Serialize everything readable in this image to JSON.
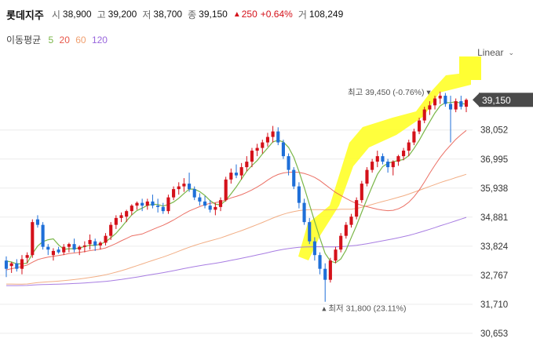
{
  "header": {
    "name": "롯데지주",
    "open_label": "시",
    "open": "38,900",
    "high_label": "고",
    "high": "39,200",
    "low_label": "저",
    "low": "38,700",
    "close_label": "종",
    "close": "39,150",
    "change": "250",
    "change_pct": "+0.64%",
    "volume_label": "거",
    "volume": "108,249"
  },
  "ma_legend": {
    "title": "이동평균",
    "periods": [
      {
        "label": "5",
        "color": "#7ab648"
      },
      {
        "label": "20",
        "color": "#e8574a"
      },
      {
        "label": "60",
        "color": "#f0a070"
      },
      {
        "label": "120",
        "color": "#9966dd"
      }
    ]
  },
  "scale_selector": "Linear",
  "chart_data": {
    "type": "candlestick",
    "y_ticks": [
      "38,052",
      "36,995",
      "35,938",
      "34,881",
      "33,824",
      "32,767",
      "31,710",
      "30,653"
    ],
    "y_tick_values": [
      38052,
      36995,
      35938,
      34881,
      33824,
      32767,
      31710,
      30653
    ],
    "ylim": [
      30450,
      40900
    ],
    "current_price_label": "39,150",
    "current_price": 39150,
    "max_annotation": "최고 39,450 (-0.76%)",
    "max_value": 39450,
    "min_annotation": "최저 31,800 (23.11%)",
    "min_value": 31800,
    "up_color": "#d4111a",
    "down_color": "#1f6fd8",
    "candles": [
      [
        33300,
        33450,
        32700,
        33000
      ],
      [
        33100,
        33250,
        32850,
        33200
      ],
      [
        33200,
        33350,
        32900,
        33000
      ],
      [
        33000,
        33500,
        32800,
        33350
      ],
      [
        33400,
        33600,
        33200,
        33500
      ],
      [
        33500,
        34800,
        33400,
        34700
      ],
      [
        34800,
        34950,
        34500,
        34600
      ],
      [
        34600,
        34700,
        33700,
        33800
      ],
      [
        33800,
        33900,
        33500,
        33700
      ],
      [
        33500,
        33750,
        33300,
        33650
      ],
      [
        33700,
        33800,
        33550,
        33600
      ],
      [
        33600,
        33900,
        33500,
        33800
      ],
      [
        33800,
        33950,
        33600,
        33900
      ],
      [
        33900,
        34100,
        33600,
        33700
      ],
      [
        33700,
        33850,
        33500,
        33800
      ],
      [
        33800,
        34000,
        33600,
        33850
      ],
      [
        33900,
        34250,
        33700,
        34050
      ],
      [
        34000,
        34100,
        33650,
        33850
      ],
      [
        33850,
        34000,
        33700,
        33950
      ],
      [
        33950,
        34300,
        33850,
        34200
      ],
      [
        34200,
        34700,
        34050,
        34600
      ],
      [
        34600,
        34950,
        34450,
        34850
      ],
      [
        34850,
        35050,
        34700,
        34950
      ],
      [
        34900,
        35150,
        34700,
        35100
      ],
      [
        35100,
        35350,
        34950,
        35300
      ],
      [
        35300,
        35450,
        35150,
        35400
      ],
      [
        35400,
        35550,
        35100,
        35300
      ],
      [
        35300,
        35550,
        35150,
        35450
      ],
      [
        35450,
        35700,
        35200,
        35300
      ],
      [
        35300,
        35550,
        35050,
        35250
      ],
      [
        35250,
        35400,
        35000,
        35100
      ],
      [
        35100,
        35700,
        35000,
        35600
      ],
      [
        35600,
        36000,
        35500,
        35900
      ],
      [
        35900,
        36150,
        35700,
        36000
      ],
      [
        36000,
        36300,
        35800,
        36100
      ],
      [
        36100,
        36500,
        35800,
        35900
      ],
      [
        35900,
        36000,
        35500,
        35600
      ],
      [
        35600,
        35750,
        35300,
        35450
      ],
      [
        35450,
        35650,
        35200,
        35300
      ],
      [
        35300,
        35500,
        35050,
        35150
      ],
      [
        35150,
        35400,
        34950,
        35250
      ],
      [
        35250,
        35600,
        35100,
        35500
      ],
      [
        35500,
        36350,
        35450,
        36250
      ],
      [
        36250,
        36650,
        36100,
        36500
      ],
      [
        36500,
        36800,
        36300,
        36400
      ],
      [
        36400,
        36850,
        36250,
        36700
      ],
      [
        36700,
        37100,
        36550,
        36900
      ],
      [
        36900,
        37400,
        36700,
        37300
      ],
      [
        37300,
        37550,
        37100,
        37400
      ],
      [
        37400,
        37700,
        37200,
        37600
      ],
      [
        37600,
        37950,
        37450,
        37800
      ],
      [
        37800,
        38200,
        37600,
        38000
      ],
      [
        38000,
        38150,
        37500,
        37600
      ],
      [
        37600,
        37700,
        37000,
        37100
      ],
      [
        37100,
        37200,
        36400,
        36600
      ],
      [
        36600,
        36700,
        35900,
        36000
      ],
      [
        36000,
        36150,
        35200,
        35400
      ],
      [
        35400,
        35550,
        34600,
        34700
      ],
      [
        34700,
        34850,
        33900,
        34000
      ],
      [
        34000,
        34150,
        33300,
        33500
      ],
      [
        33500,
        33600,
        32800,
        33000
      ],
      [
        33000,
        33200,
        31800,
        32600
      ],
      [
        32600,
        33400,
        32500,
        33300
      ],
      [
        33300,
        33800,
        33200,
        33700
      ],
      [
        33700,
        34300,
        33600,
        34200
      ],
      [
        34200,
        34700,
        34100,
        34600
      ],
      [
        34600,
        35000,
        34500,
        34900
      ],
      [
        34900,
        35600,
        34800,
        35500
      ],
      [
        35500,
        36200,
        35400,
        36100
      ],
      [
        36100,
        36700,
        36000,
        36600
      ],
      [
        36600,
        37000,
        36500,
        36900
      ],
      [
        36900,
        37300,
        36700,
        37100
      ],
      [
        37100,
        37200,
        36800,
        36900
      ],
      [
        36900,
        37000,
        36500,
        36700
      ],
      [
        36700,
        36950,
        36400,
        36900
      ],
      [
        36900,
        37150,
        36750,
        37100
      ],
      [
        37100,
        37400,
        36950,
        37300
      ],
      [
        37300,
        37700,
        37100,
        37600
      ],
      [
        37600,
        38100,
        37500,
        38000
      ],
      [
        38000,
        38500,
        37900,
        38400
      ],
      [
        38400,
        38900,
        38300,
        38800
      ],
      [
        38800,
        39100,
        38600,
        38950
      ],
      [
        38950,
        39300,
        38800,
        39200
      ],
      [
        39200,
        39450,
        39000,
        39300
      ],
      [
        39300,
        39400,
        38900,
        39000
      ],
      [
        39000,
        39300,
        37600,
        38800
      ],
      [
        38800,
        39200,
        38700,
        39100
      ],
      [
        39100,
        39300,
        38800,
        38900
      ],
      [
        38900,
        39200,
        38700,
        39150
      ]
    ]
  }
}
